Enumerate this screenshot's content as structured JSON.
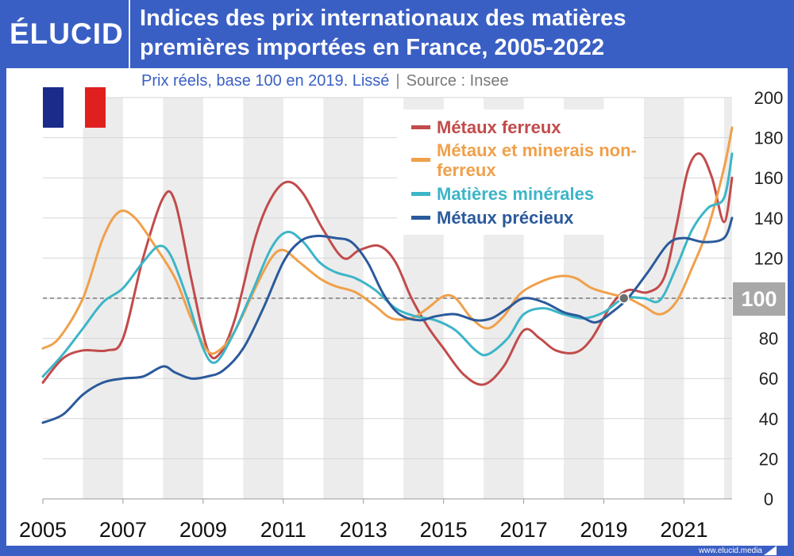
{
  "header": {
    "logo": "ÉLUCID",
    "title_line1": "Indices des prix internationaux des matières",
    "title_line2": "premières importées en France, 2005-2022",
    "subtitle": "Prix réels, base 100 en 2019. Lissé",
    "separator": "|",
    "source": "Source : Insee"
  },
  "flag": {
    "name": "france-flag-icon",
    "colors": [
      "#1b2b8a",
      "#ffffff",
      "#e0201f"
    ]
  },
  "footer": {
    "url": "www.elucid.media"
  },
  "colors": {
    "background": "#3a5fc4",
    "band": "#ececec",
    "reference_line": "#7a7a7a"
  },
  "chart_data": {
    "type": "line",
    "title": "Indices des prix internationaux des matières premières importées en France, 2005-2022",
    "subtitle": "Prix réels, base 100 en 2019. Lissé",
    "xlim": [
      2005,
      2022.2
    ],
    "ylim": [
      0,
      200
    ],
    "x_ticks": [
      "2005",
      "2007",
      "2009",
      "2011",
      "2013",
      "2015",
      "2017",
      "2019",
      "2021"
    ],
    "y_ticks": [
      "0",
      "20",
      "40",
      "60",
      "80",
      "100",
      "120",
      "140",
      "160",
      "180",
      "200"
    ],
    "reference_value": 100,
    "reference_label": "100",
    "base_year": 2019.5,
    "legend_position": "top-right",
    "series": [
      {
        "name": "Métaux ferreux",
        "color": "#c24b4b",
        "points": [
          [
            2005,
            58
          ],
          [
            2005.5,
            70
          ],
          [
            2006,
            74
          ],
          [
            2006.6,
            74
          ],
          [
            2007,
            80
          ],
          [
            2007.5,
            120
          ],
          [
            2008,
            150
          ],
          [
            2008.3,
            148
          ],
          [
            2008.7,
            110
          ],
          [
            2009.1,
            75
          ],
          [
            2009.4,
            72
          ],
          [
            2009.8,
            90
          ],
          [
            2010.3,
            130
          ],
          [
            2010.7,
            150
          ],
          [
            2011.1,
            158
          ],
          [
            2011.5,
            152
          ],
          [
            2012,
            134
          ],
          [
            2012.5,
            120
          ],
          [
            2012.9,
            124
          ],
          [
            2013.4,
            126
          ],
          [
            2013.8,
            118
          ],
          [
            2014.2,
            100
          ],
          [
            2014.6,
            86
          ],
          [
            2015,
            75
          ],
          [
            2015.5,
            62
          ],
          [
            2016,
            57
          ],
          [
            2016.5,
            66
          ],
          [
            2017,
            84
          ],
          [
            2017.4,
            80
          ],
          [
            2017.8,
            74
          ],
          [
            2018.3,
            73
          ],
          [
            2018.7,
            80
          ],
          [
            2019.2,
            97
          ],
          [
            2019.6,
            104
          ],
          [
            2020.1,
            103
          ],
          [
            2020.5,
            110
          ],
          [
            2020.8,
            135
          ],
          [
            2021.1,
            164
          ],
          [
            2021.4,
            172
          ],
          [
            2021.7,
            160
          ],
          [
            2022,
            138
          ],
          [
            2022.2,
            160
          ]
        ]
      },
      {
        "name": "Métaux et minerais non-ferreux",
        "color": "#f0a04b",
        "points": [
          [
            2005,
            75
          ],
          [
            2005.4,
            80
          ],
          [
            2006,
            100
          ],
          [
            2006.5,
            130
          ],
          [
            2006.9,
            143
          ],
          [
            2007.3,
            140
          ],
          [
            2007.8,
            126
          ],
          [
            2008.3,
            110
          ],
          [
            2008.7,
            90
          ],
          [
            2009.1,
            74
          ],
          [
            2009.4,
            74
          ],
          [
            2009.8,
            84
          ],
          [
            2010.3,
            105
          ],
          [
            2010.7,
            120
          ],
          [
            2011,
            124
          ],
          [
            2011.4,
            118
          ],
          [
            2011.9,
            110
          ],
          [
            2012.3,
            106
          ],
          [
            2012.8,
            103
          ],
          [
            2013.3,
            96
          ],
          [
            2013.7,
            90
          ],
          [
            2014.2,
            90
          ],
          [
            2014.6,
            95
          ],
          [
            2015,
            101
          ],
          [
            2015.3,
            100
          ],
          [
            2015.7,
            90
          ],
          [
            2016.1,
            85
          ],
          [
            2016.5,
            91
          ],
          [
            2016.9,
            102
          ],
          [
            2017.4,
            108
          ],
          [
            2017.9,
            111
          ],
          [
            2018.3,
            110
          ],
          [
            2018.7,
            105
          ],
          [
            2019.2,
            102
          ],
          [
            2019.6,
            100
          ],
          [
            2020,
            96
          ],
          [
            2020.4,
            92
          ],
          [
            2020.8,
            98
          ],
          [
            2021.2,
            115
          ],
          [
            2021.6,
            135
          ],
          [
            2022,
            165
          ],
          [
            2022.2,
            185
          ]
        ]
      },
      {
        "name": "Matières minérales",
        "color": "#3db5c8",
        "points": [
          [
            2005,
            61
          ],
          [
            2005.5,
            72
          ],
          [
            2006,
            85
          ],
          [
            2006.5,
            98
          ],
          [
            2007,
            105
          ],
          [
            2007.5,
            118
          ],
          [
            2007.9,
            126
          ],
          [
            2008.2,
            121
          ],
          [
            2008.6,
            100
          ],
          [
            2009,
            75
          ],
          [
            2009.3,
            68
          ],
          [
            2009.7,
            80
          ],
          [
            2010.2,
            102
          ],
          [
            2010.7,
            125
          ],
          [
            2011.1,
            133
          ],
          [
            2011.5,
            128
          ],
          [
            2011.9,
            118
          ],
          [
            2012.3,
            113
          ],
          [
            2012.8,
            110
          ],
          [
            2013.3,
            104
          ],
          [
            2013.8,
            95
          ],
          [
            2014.3,
            91
          ],
          [
            2014.8,
            89
          ],
          [
            2015.3,
            84
          ],
          [
            2015.8,
            74
          ],
          [
            2016.1,
            72
          ],
          [
            2016.6,
            80
          ],
          [
            2017,
            92
          ],
          [
            2017.5,
            95
          ],
          [
            2018,
            92
          ],
          [
            2018.5,
            90
          ],
          [
            2019,
            93
          ],
          [
            2019.5,
            100
          ],
          [
            2020,
            100
          ],
          [
            2020.4,
            99
          ],
          [
            2020.8,
            115
          ],
          [
            2021.2,
            134
          ],
          [
            2021.6,
            145
          ],
          [
            2022,
            150
          ],
          [
            2022.2,
            172
          ]
        ]
      },
      {
        "name": "Métaux précieux",
        "color": "#2b5a9b",
        "points": [
          [
            2005,
            38
          ],
          [
            2005.5,
            42
          ],
          [
            2006,
            52
          ],
          [
            2006.5,
            58
          ],
          [
            2007,
            60
          ],
          [
            2007.5,
            61
          ],
          [
            2008,
            66
          ],
          [
            2008.3,
            63
          ],
          [
            2008.7,
            60
          ],
          [
            2009.1,
            61
          ],
          [
            2009.5,
            64
          ],
          [
            2010,
            75
          ],
          [
            2010.5,
            95
          ],
          [
            2011,
            118
          ],
          [
            2011.4,
            128
          ],
          [
            2011.8,
            131
          ],
          [
            2012.3,
            130
          ],
          [
            2012.7,
            128
          ],
          [
            2013.1,
            118
          ],
          [
            2013.5,
            102
          ],
          [
            2013.9,
            92
          ],
          [
            2014.4,
            89
          ],
          [
            2014.8,
            91
          ],
          [
            2015.3,
            92
          ],
          [
            2015.8,
            89
          ],
          [
            2016.2,
            90
          ],
          [
            2016.6,
            95
          ],
          [
            2017,
            100
          ],
          [
            2017.5,
            98
          ],
          [
            2018,
            93
          ],
          [
            2018.4,
            91
          ],
          [
            2018.8,
            88
          ],
          [
            2019.2,
            93
          ],
          [
            2019.6,
            100
          ],
          [
            2020.1,
            113
          ],
          [
            2020.6,
            127
          ],
          [
            2021,
            130
          ],
          [
            2021.5,
            128
          ],
          [
            2022,
            130
          ],
          [
            2022.2,
            140
          ]
        ]
      }
    ]
  }
}
